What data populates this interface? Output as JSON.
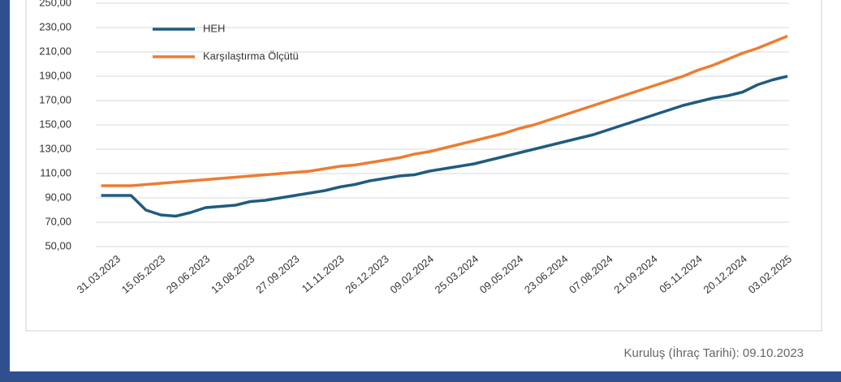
{
  "chart_data": {
    "type": "line",
    "categories": [
      null,
      "31.03.2023",
      null,
      null,
      "15.05.2023",
      null,
      null,
      "29.06.2023",
      null,
      null,
      "13.08.2023",
      null,
      null,
      "27.09.2023",
      null,
      null,
      "11.11.2023",
      null,
      null,
      "26.12.2023",
      null,
      null,
      "09.02.2024",
      null,
      null,
      "25.03.2024",
      null,
      null,
      "09.05.2024",
      null,
      null,
      "23.06.2024",
      null,
      null,
      "07.08.2024",
      null,
      null,
      "21.09.2024",
      null,
      null,
      "05.11.2024",
      null,
      null,
      "20.12.2024",
      null,
      null,
      "03.02.2025"
    ],
    "series": [
      {
        "name": "HEH",
        "color": "#1f5c7f",
        "values": [
          92,
          92,
          92,
          80,
          76,
          75,
          78,
          82,
          83,
          84,
          87,
          88,
          90,
          92,
          94,
          96,
          99,
          101,
          104,
          106,
          108,
          109,
          112,
          114,
          116,
          118,
          121,
          124,
          127,
          130,
          133,
          136,
          139,
          142,
          146,
          150,
          154,
          158,
          162,
          166,
          169,
          172,
          174,
          177,
          183,
          187,
          190
        ]
      },
      {
        "name": "Karşılaştırma Ölçütü",
        "color": "#ed7d31",
        "values": [
          100,
          100,
          100,
          101,
          102,
          103,
          104,
          105,
          106,
          107,
          108,
          109,
          110,
          111,
          112,
          114,
          116,
          117,
          119,
          121,
          123,
          126,
          128,
          131,
          134,
          137,
          140,
          143,
          147,
          150,
          154,
          158,
          162,
          166,
          170,
          174,
          178,
          182,
          186,
          190,
          195,
          199,
          204,
          209,
          213,
          218,
          223
        ]
      }
    ],
    "ylim": [
      50,
      250
    ],
    "yticks": [
      {
        "value": 50,
        "label": "50,00"
      },
      {
        "value": 70,
        "label": "70,00"
      },
      {
        "value": 90,
        "label": "90,00"
      },
      {
        "value": 110,
        "label": "110,00"
      },
      {
        "value": 130,
        "label": "130,00"
      },
      {
        "value": 150,
        "label": "150,00"
      },
      {
        "value": 170,
        "label": "170,00"
      },
      {
        "value": 190,
        "label": "190,00"
      },
      {
        "value": 210,
        "label": "210,00"
      },
      {
        "value": 230,
        "label": "230,00"
      },
      {
        "value": 250,
        "label": "250,00"
      }
    ],
    "grid": true,
    "legend": "upper left",
    "footer": "Kuruluş (İhraç Tarihi): 09.10.2023"
  }
}
